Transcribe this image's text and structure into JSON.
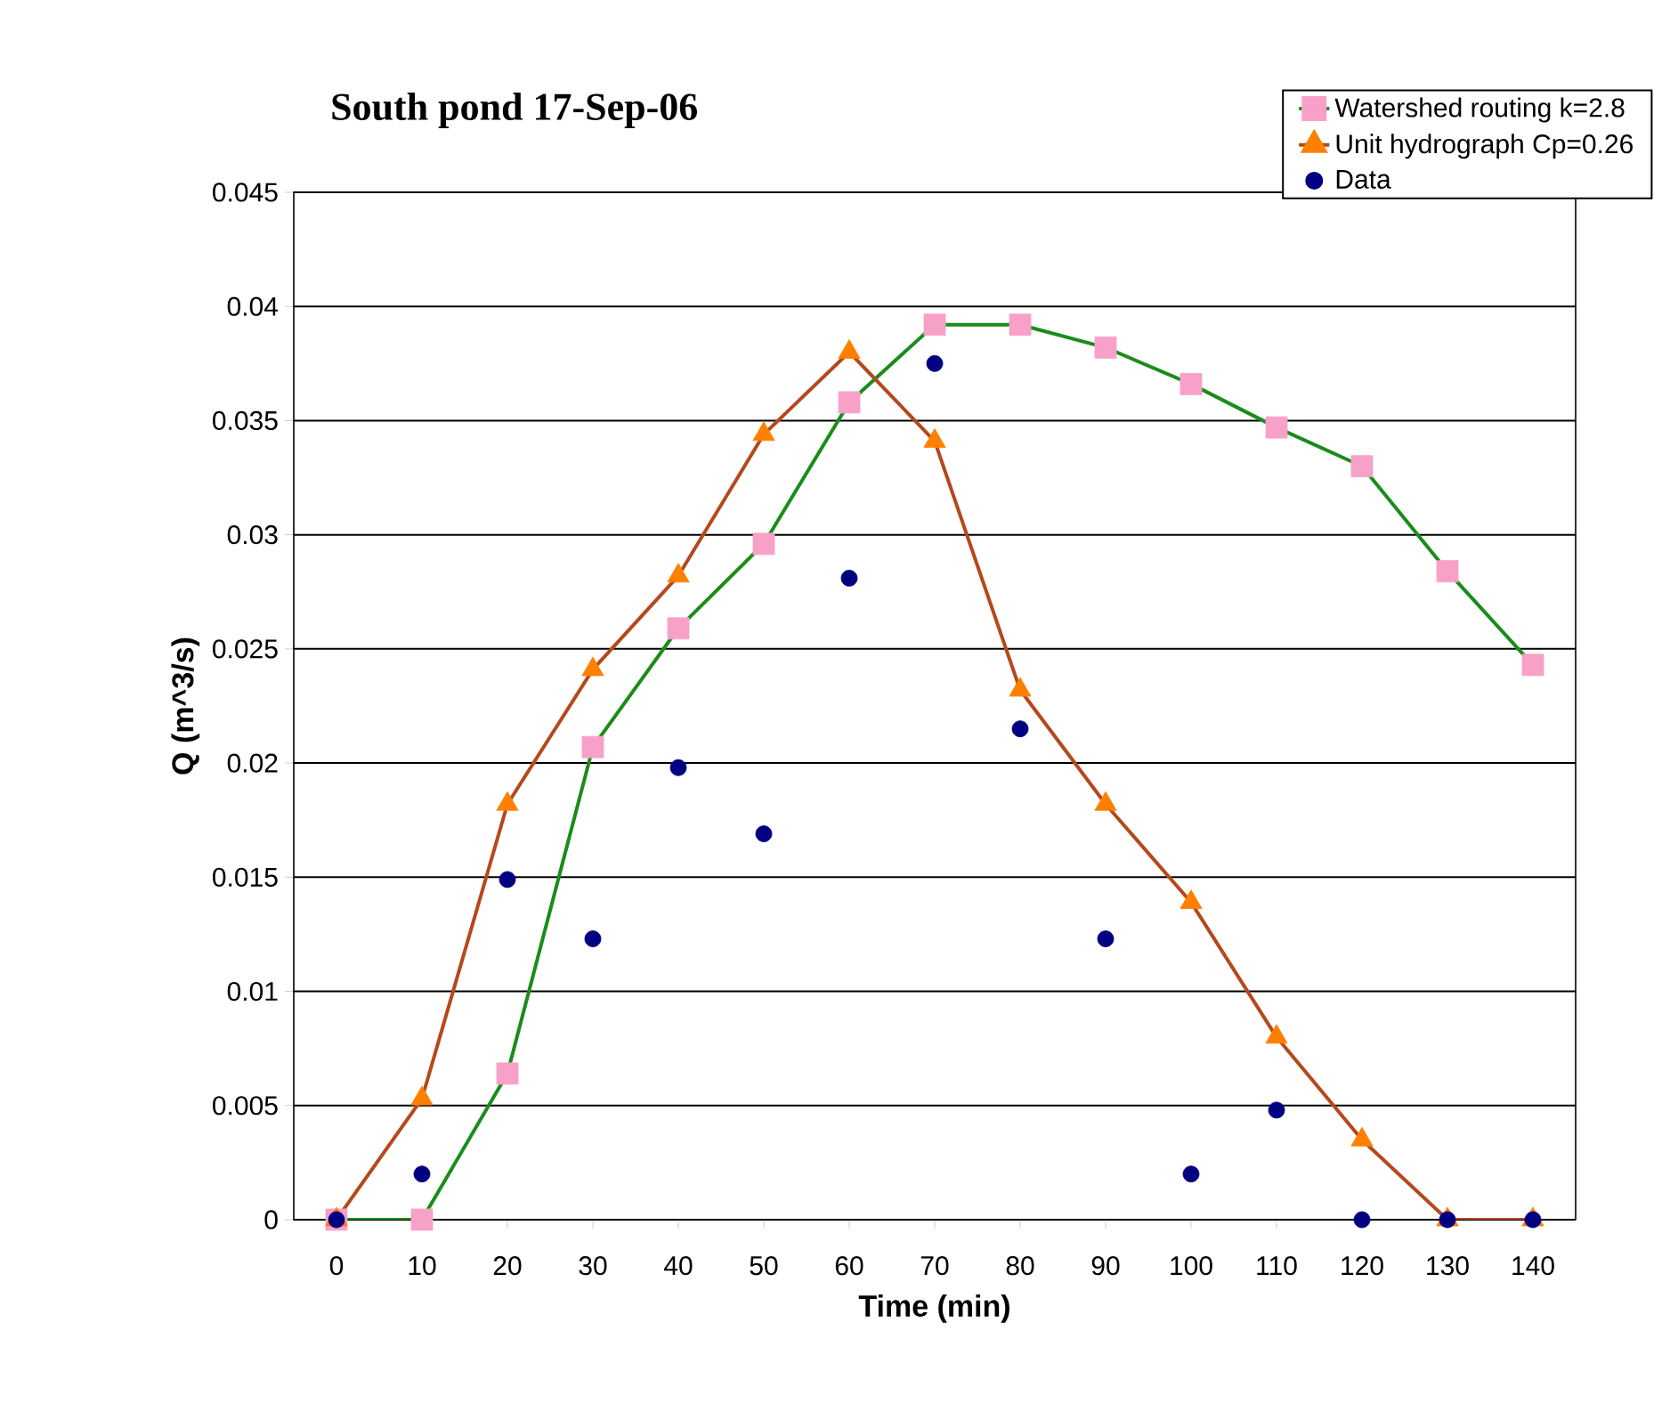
{
  "chart_data": {
    "type": "line",
    "title": "South pond 17-Sep-06",
    "xlabel": "Time (min)",
    "ylabel": "Q (m^3/s)",
    "xlim": [
      -5,
      145
    ],
    "xticks": [
      0,
      10,
      20,
      30,
      40,
      50,
      60,
      70,
      80,
      90,
      100,
      110,
      120,
      130,
      140
    ],
    "ylim": [
      0,
      0.045
    ],
    "yticks": [
      0,
      0.005,
      0.01,
      0.015,
      0.02,
      0.025,
      0.03,
      0.035,
      0.04,
      0.045
    ],
    "grid": "y",
    "legend": "top right",
    "series": [
      {
        "name": "Watershed routing k=2.8",
        "marker": "square",
        "line_style": "solid",
        "color": "#1a8c1a",
        "colors": [
          "#f7a1c9",
          "#f7a1c9",
          "#f7a1c9",
          "#f7a1c9",
          "#f7a1c9",
          "#f7a1c9",
          "#f7a1c9",
          "#f7a1c9",
          "#f7a1c9",
          "#f7a1c9",
          "#f7a1c9",
          "#f7a1c9",
          "#f7a1c9",
          "#f7a1c9",
          "#f7a1c9"
        ],
        "x": [
          0,
          10,
          20,
          30,
          40,
          50,
          60,
          70,
          80,
          90,
          100,
          110,
          120,
          130,
          140
        ],
        "values": [
          0,
          0,
          0.0064,
          0.0207,
          0.0259,
          0.0296,
          0.0358,
          0.0392,
          0.0392,
          0.0382,
          0.0366,
          0.0347,
          0.033,
          0.0284,
          0.0243
        ]
      },
      {
        "name": "Unit hydrograph Cp=0.26",
        "marker": "triangle",
        "line_style": "solid",
        "color": "#b5481c",
        "colors": [
          "#ff8000",
          "#ff8000",
          "#ff8000",
          "#ff8000",
          "#ff8000",
          "#ff8000",
          "#ff8000",
          "#ff8000",
          "#ff8000",
          "#ff8000",
          "#ff8000",
          "#ff8000",
          "#ff8000",
          "#ff8000",
          "#ff8000"
        ],
        "x": [
          0,
          10,
          20,
          30,
          40,
          50,
          60,
          70,
          80,
          90,
          100,
          110,
          120,
          130,
          140
        ],
        "values": [
          0,
          0.0053,
          0.0182,
          0.0241,
          0.0282,
          0.0344,
          0.038,
          0.0341,
          0.0232,
          0.0182,
          0.0139,
          0.008,
          0.0035,
          0,
          0
        ]
      },
      {
        "name": "Data",
        "type": "scatter",
        "marker": "circle",
        "color": "#000080",
        "x": [
          0,
          10,
          20,
          30,
          40,
          50,
          60,
          70,
          80,
          90,
          100,
          110,
          120,
          130,
          140
        ],
        "values": [
          0,
          0.002,
          0.0149,
          0.0123,
          0.0198,
          0.0169,
          0.0281,
          0.0375,
          0.0215,
          0.0123,
          0.002,
          0.0048,
          0,
          0,
          0
        ]
      }
    ]
  }
}
